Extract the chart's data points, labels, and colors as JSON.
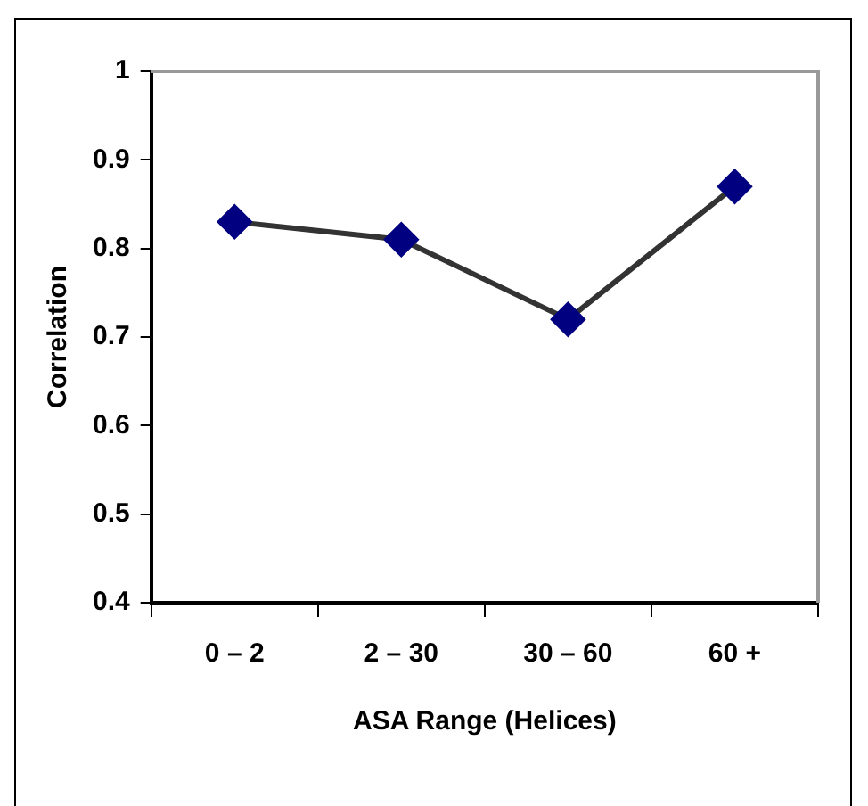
{
  "chart_data": {
    "type": "line",
    "xlabel": "ASA Range (Helices)",
    "ylabel": "Correlation",
    "categories": [
      "0 – 2",
      "2 – 30",
      "30 – 60",
      "60 +"
    ],
    "series": [
      {
        "color": "#000080",
        "values": [
          0.83,
          0.81,
          0.72,
          0.87
        ]
      }
    ],
    "ylim": [
      0.4,
      1
    ],
    "yticks": [
      0.4,
      0.5,
      0.6,
      0.7,
      0.8,
      0.9,
      1
    ],
    "marker": "diamond",
    "legend": false
  }
}
